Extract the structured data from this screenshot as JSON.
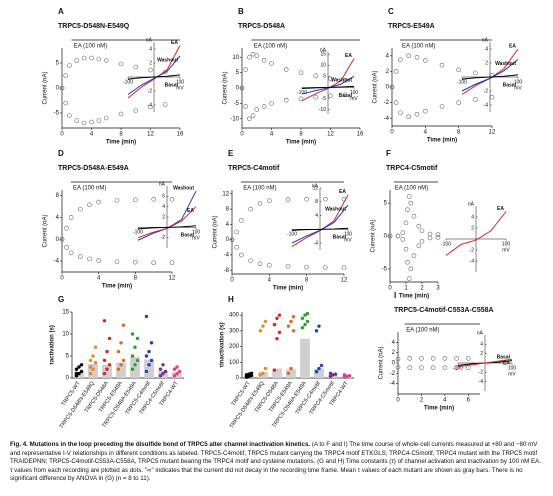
{
  "panels": [
    {
      "label": "A",
      "title": "TRPC5-D548N-E549Q",
      "ea": "EA (100 nM)",
      "xlabel": "Time (min)",
      "ylabel": "Current (nA)",
      "xlim": [
        0,
        16
      ],
      "ylim": [
        -8,
        8
      ],
      "xticks": [
        0,
        4,
        8,
        12,
        16
      ],
      "yticks": [
        -5,
        0,
        5
      ],
      "x": [
        0,
        0.5,
        1,
        2,
        3,
        4,
        5,
        6,
        8,
        10,
        12,
        14
      ],
      "series": [
        {
          "values": [
            0,
            2.5,
            4.5,
            5.5,
            6,
            6,
            5.8,
            5.5,
            4.8,
            4.2,
            3.6,
            3.2
          ]
        },
        {
          "values": [
            0,
            -3,
            -5.5,
            -6.5,
            -7,
            -6.8,
            -6.5,
            -6,
            -5.2,
            -4.5,
            -3.8,
            -3.3
          ]
        }
      ],
      "inset": {
        "ylim": [
          -5,
          5
        ],
        "yticks": [
          -4,
          -2,
          2,
          4
        ],
        "xticks": [
          -100,
          100
        ],
        "yunit": "nA",
        "xunit": "mV",
        "x": [
          -100,
          -50,
          0,
          50,
          100
        ],
        "curves": [
          {
            "name": "EA",
            "color": "#d62728",
            "values": [
              -3,
              -1.5,
              -0.3,
              1,
              4.5
            ]
          },
          {
            "name": "Washout",
            "color": "#2233bb",
            "values": [
              -2.5,
              -1.2,
              -0.2,
              0.8,
              3
            ]
          },
          {
            "name": "Basal",
            "color": "#000000",
            "values": [
              -0.3,
              -0.1,
              0,
              0.1,
              0.3
            ]
          }
        ]
      }
    },
    {
      "label": "B",
      "title": "TRPC5-D548A",
      "ea": "EA (100 nM)",
      "xlabel": "Time (min)",
      "ylabel": "Current (nA)",
      "xlim": [
        0,
        16
      ],
      "ylim": [
        -13,
        13
      ],
      "xticks": [
        0,
        4,
        8,
        12,
        16
      ],
      "yticks": [
        -10,
        -5,
        0,
        5,
        10
      ],
      "x": [
        0,
        0.5,
        1,
        1.5,
        2,
        3,
        4,
        6,
        8,
        10,
        12,
        14
      ],
      "series": [
        {
          "values": [
            0,
            6,
            10,
            11,
            10.5,
            9,
            8,
            6,
            5,
            4,
            3,
            2.5
          ]
        },
        {
          "values": [
            0,
            -6,
            -10,
            -9,
            -7,
            -6,
            -5,
            -4,
            -3.5,
            -3,
            -2.5,
            -2.2
          ]
        }
      ],
      "inset": {
        "ylim": [
          -12,
          16
        ],
        "yticks": [
          -10,
          -5,
          5,
          10,
          15
        ],
        "xticks": [
          -100,
          100
        ],
        "yunit": "nA",
        "xunit": "mV",
        "x": [
          -100,
          -50,
          0,
          50,
          100
        ],
        "curves": [
          {
            "name": "EA",
            "color": "#d62728",
            "values": [
              -6,
              -3,
              -0.5,
              3,
              13
            ]
          },
          {
            "name": "Washout",
            "color": "#2233bb",
            "values": [
              -3,
              -1.5,
              -0.2,
              1.5,
              5
            ]
          },
          {
            "name": "Basal",
            "color": "#000000",
            "values": [
              -0.5,
              -0.2,
              0,
              0.2,
              0.5
            ]
          }
        ]
      }
    },
    {
      "label": "C",
      "title": "TRPC5-E549A",
      "ea": "EA (100 nM)",
      "xlabel": "Time (min)",
      "ylabel": "Current (nA)",
      "xlim": [
        0,
        12
      ],
      "ylim": [
        -5,
        5
      ],
      "xticks": [
        0,
        4,
        8,
        12
      ],
      "yticks": [
        -4,
        -2,
        0,
        2,
        4
      ],
      "x": [
        0,
        0.5,
        1,
        2,
        3,
        4,
        6,
        8,
        10,
        12
      ],
      "series": [
        {
          "values": [
            0,
            2,
            3.5,
            4,
            3.8,
            3.4,
            2.8,
            2.2,
            1.8,
            1.5
          ]
        },
        {
          "values": [
            0,
            -2,
            -3.3,
            -3.8,
            -3.5,
            -3.1,
            -2.5,
            -2,
            -1.6,
            -1.3
          ]
        }
      ],
      "inset": {
        "ylim": [
          -5,
          5
        ],
        "yticks": [
          -4,
          -2,
          2,
          4
        ],
        "xticks": [
          -100,
          100
        ],
        "yunit": "nA",
        "xunit": "mV",
        "x": [
          -100,
          -50,
          0,
          50,
          100
        ],
        "curves": [
          {
            "name": "EA",
            "color": "#d62728",
            "values": [
              -2.5,
              -1.2,
              -0.2,
              1.2,
              4
            ]
          },
          {
            "name": "Washout",
            "color": "#2233bb",
            "values": [
              -2,
              -1,
              -0.2,
              0.9,
              2.5
            ]
          },
          {
            "name": "Basal",
            "color": "#000000",
            "values": [
              -0.3,
              -0.1,
              0,
              0.1,
              0.3
            ]
          }
        ]
      }
    },
    {
      "label": "D",
      "title": "TRPC5-D548A-E549A",
      "ea": "EA (100 nM)",
      "xlabel": "Time (min)",
      "ylabel": "Current (nA)",
      "xlim": [
        0,
        12
      ],
      "ylim": [
        -6,
        9
      ],
      "xticks": [
        0,
        4,
        8,
        12
      ],
      "yticks": [
        -4,
        0,
        4,
        8
      ],
      "x": [
        0,
        0.5,
        1,
        2,
        3,
        4,
        6,
        8,
        10,
        12
      ],
      "series": [
        {
          "values": [
            0,
            2,
            4,
            5.5,
            6.3,
            6.8,
            7.1,
            7.2,
            7.3,
            7.3
          ]
        },
        {
          "values": [
            0,
            -1.5,
            -2.5,
            -3.2,
            -3.6,
            -3.9,
            -4.1,
            -4.2,
            -4.3,
            -4.3
          ]
        }
      ],
      "inset": {
        "ylim": [
          -4,
          8
        ],
        "yticks": [
          -2,
          2,
          4,
          6
        ],
        "xticks": [
          -100,
          100
        ],
        "yunit": "nA",
        "xunit": "mV",
        "x": [
          -100,
          -50,
          0,
          50,
          100
        ],
        "curves": [
          {
            "name": "Washout",
            "color": "#2233bb",
            "values": [
              -2.5,
              -1.2,
              -0.2,
              1.5,
              7
            ]
          },
          {
            "name": "EA",
            "color": "#d62728",
            "values": [
              -2,
              -1,
              -0.2,
              1.2,
              4
            ]
          },
          {
            "name": "Basal",
            "color": "#000000",
            "values": [
              -0.3,
              -0.1,
              0,
              0.1,
              0.3
            ]
          }
        ]
      }
    },
    {
      "label": "E",
      "title": "TRPC5-C4motif",
      "ea": "EA (100 nM)",
      "xlabel": "Time (min)",
      "ylabel": "Current (nA)",
      "xlim": [
        0,
        12
      ],
      "ylim": [
        -9,
        13
      ],
      "xticks": [
        0,
        4,
        8,
        12
      ],
      "yticks": [
        -8,
        -4,
        0,
        4,
        8,
        12
      ],
      "x": [
        0,
        0.5,
        1,
        2,
        3,
        4,
        6,
        8,
        10,
        12
      ],
      "series": [
        {
          "values": [
            0,
            2,
            5,
            8,
            9.5,
            10.2,
            10.5,
            10.6,
            10.6,
            10.6
          ]
        },
        {
          "values": [
            0,
            -2,
            -4,
            -5.5,
            -6.3,
            -6.7,
            -7,
            -7.2,
            -7.3,
            -7.3
          ]
        }
      ],
      "inset": {
        "ylim": [
          -6,
          12
        ],
        "yticks": [
          -4,
          4,
          8,
          12
        ],
        "xticks": [
          -100,
          100
        ],
        "yunit": "nA",
        "xunit": "mV",
        "x": [
          -100,
          -50,
          0,
          50,
          100
        ],
        "curves": [
          {
            "name": "EA",
            "color": "#d62728",
            "values": [
              -5,
              -2.5,
              -0.4,
              2.5,
              10
            ]
          },
          {
            "name": "Washout",
            "color": "#2233bb",
            "values": [
              -4,
              -2,
              -0.3,
              2,
              7
            ]
          },
          {
            "name": "Basal",
            "color": "#000000",
            "values": [
              -0.3,
              -0.1,
              0,
              0.1,
              0.3
            ]
          }
        ]
      }
    },
    {
      "label": "F",
      "title": "TRPC4-C5motif",
      "ea": "EA (100 nM)",
      "xlabel": "Time (min)",
      "ylabel": "Current (nA)",
      "xlim": [
        0,
        3
      ],
      "ylim": [
        -7,
        7
      ],
      "xticks": [
        0,
        1,
        2,
        3
      ],
      "yticks": [
        -5,
        0,
        5
      ],
      "x": [
        0,
        0.5,
        0.8,
        1,
        1.1,
        1.2,
        1.3,
        1.5,
        1.8,
        2,
        2.5,
        3
      ],
      "series": [
        {
          "values": [
            0,
            0,
            0.5,
            2,
            4,
            6,
            5,
            3,
            1.5,
            0.8,
            0.3,
            0.2
          ]
        },
        {
          "values": [
            0,
            0,
            -0.5,
            -2,
            -4,
            -6.5,
            -5,
            -3,
            -1.5,
            -0.8,
            -0.3,
            -0.2
          ]
        }
      ],
      "inset": {
        "ylim": [
          -6,
          6
        ],
        "yticks": [
          -4,
          -2,
          2,
          4
        ],
        "xticks": [
          -100,
          100
        ],
        "yunit": "nA",
        "xunit": "mV",
        "x": [
          -100,
          -50,
          0,
          50,
          100
        ],
        "curves": [
          {
            "name": "EA",
            "color": "#d62728",
            "values": [
              -3,
              -1,
              -0.2,
              1.5,
              5
            ]
          }
        ]
      }
    },
    {
      "label": "I",
      "title": "TRPC5-C4motif-C553A-C558A",
      "ea": "EA (100 nM)",
      "xlabel": "Time (min)",
      "ylabel": "Current (nA)",
      "xlim": [
        0,
        7
      ],
      "ylim": [
        -6,
        6
      ],
      "xticks": [
        0,
        2,
        4,
        6
      ],
      "yticks": [
        -4,
        -2,
        0,
        2,
        4
      ],
      "x": [
        0,
        1,
        2,
        3,
        4,
        5,
        6
      ],
      "series": [
        {
          "values": [
            0.8,
            0.9,
            0.9,
            0.9,
            0.9,
            0.9,
            0.9
          ]
        },
        {
          "values": [
            -0.8,
            -0.9,
            -0.9,
            -0.9,
            -0.9,
            -0.9,
            -0.9
          ]
        }
      ],
      "inset": {
        "ylim": [
          -6,
          6
        ],
        "yticks": [
          -4,
          -2,
          2,
          4
        ],
        "xticks": [
          -100,
          100
        ],
        "yunit": "nA",
        "xunit": "mV",
        "x": [
          -100,
          -50,
          0,
          50,
          100
        ],
        "curves": [
          {
            "name": "Basal",
            "color": "#000000",
            "values": [
              -0.5,
              -0.2,
              0,
              0.2,
              0.5
            ]
          },
          {
            "name": "EA",
            "color": "#d62728",
            "values": [
              -0.8,
              -0.4,
              0,
              0.4,
              0.8
            ]
          }
        ]
      }
    }
  ],
  "stats": [
    {
      "label": "G",
      "ylabel": "τactivation (s)",
      "ylim": [
        0,
        15
      ],
      "yticks": [
        0,
        5,
        10,
        15
      ],
      "categories": [
        "TRPC5-WT",
        "TRPC5-D548N-E549Q",
        "TRPC5-D548A",
        "TRPC5-E549A",
        "TRPC5-D548A-E549A",
        "TRPC5-C4motif",
        "TRPC4-C5motif",
        "TRPC4-WT"
      ],
      "colors": [
        "#000000",
        "#e8892b",
        "#d62728",
        "#e06a1a",
        "#2ca02c",
        "#1f3fbf",
        "#7b2d8e",
        "#e0408a"
      ],
      "means": [
        1.5,
        3.2,
        3,
        3.5,
        4.8,
        4.2,
        1.6,
        1.3
      ],
      "dots": [
        [
          0.5,
          1,
          1.5,
          2,
          2.5,
          3,
          1
        ],
        [
          1,
          2,
          3.5,
          4,
          5,
          7,
          2.5
        ],
        [
          1,
          2,
          3,
          4,
          6,
          9,
          13
        ],
        [
          2,
          3,
          4,
          6,
          8,
          12
        ],
        [
          2,
          3,
          4,
          5,
          7,
          9,
          10
        ],
        [
          1.5,
          3,
          4,
          5,
          6,
          8,
          14
        ],
        [
          0.5,
          1,
          1.5,
          2,
          3
        ],
        [
          0.5,
          1,
          1.5,
          2,
          2.5
        ]
      ]
    },
    {
      "label": "H",
      "ylabel": "τinactivation (s)",
      "ylim": [
        0,
        420
      ],
      "yticks": [
        0,
        100,
        200,
        300,
        400
      ],
      "categories": [
        "TRPC5-WT",
        "TRPC5-D548N-E549Q",
        "TRPC5-D548A",
        "TRPC5-E549A",
        "TRPC5-D548A-E549A",
        "TRPC5-C4motif",
        "TRPC4-C5motif",
        "TRPC4-WT"
      ],
      "colors": [
        "#000000",
        "#e8892b",
        "#d62728",
        "#e06a1a",
        "#2ca02c",
        "#1f3fbf",
        "#7b2d8e",
        "#e0408a"
      ],
      "means": [
        15,
        40,
        60,
        55,
        250,
        60,
        20,
        15
      ],
      "dots": [
        [
          5,
          10,
          15,
          20,
          25,
          30
        ],
        [
          20,
          30,
          60,
          300,
          330,
          360
        ],
        [
          50,
          250,
          290,
          340,
          380,
          400
        ],
        [
          30,
          60,
          300,
          330,
          360,
          390
        ],
        [
          320,
          340,
          360,
          380,
          400,
          410
        ],
        [
          40,
          60,
          80,
          300,
          330
        ],
        [
          10,
          20,
          25,
          30
        ],
        [
          5,
          10,
          15,
          20
        ]
      ]
    }
  ],
  "caption": {
    "title": "Fig. 4. Mutations in the loop preceding the disulfide bond of TRPC5 alter channel inactivation kinetics.",
    "text": "(A to F and I) The time course of whole-cell currents measured at +80 and −80 mV and representative I-V relationships in different conditions as labeled. TRPC5-C4motif, TRPC5 mutant carrying the TRPC4 motif ETKGLS; TRPC4-C5motif, TRPC4 mutant with the TRPC5 motif TRAIDEPNN; TRPC5-C4motif-C553A-C558A, TRPC5 mutant bearing the TRPC4 motif and cysteine mutations. (G and H) Time constants (τ) of channel activation and inactivation by 100 nM EA. τ values from each recording are plotted as dots. \"∞\" indicates that the current did not decay in the recording time frame. Mean τ values of each mutant are shown as gray bars. There is no significant difference by ANOVA in (G) (n = 8 to 11)."
  }
}
